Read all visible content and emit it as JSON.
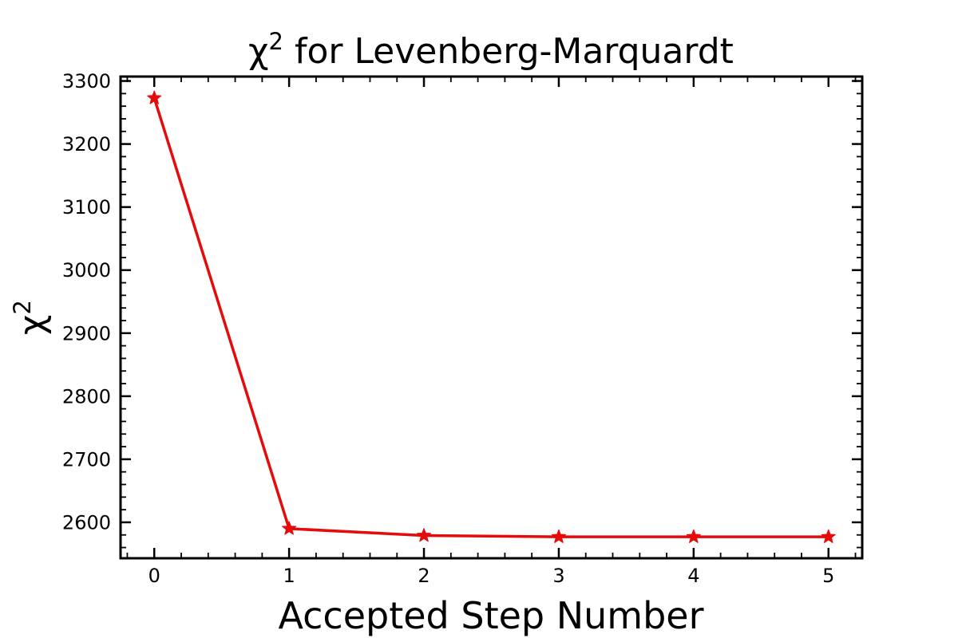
{
  "chart_data": {
    "type": "line",
    "title_base": "χ",
    "title_sup": "2",
    "title_rest": " for Levenberg-Marquardt",
    "xlabel": "Accepted Step Number",
    "ylabel_base": "χ",
    "ylabel_sup": "2",
    "x": [
      0,
      1,
      2,
      3,
      4,
      5
    ],
    "series": [
      {
        "color": "#e60b0b",
        "marker": "star",
        "values": [
          3273,
          2590,
          2579,
          2577,
          2577,
          2577
        ]
      }
    ],
    "xlim": [
      -0.25,
      5.25
    ],
    "ylim": [
      2543,
      3307
    ],
    "xticks": [
      0,
      1,
      2,
      3,
      4,
      5
    ],
    "xtick_labels": [
      "0",
      "1",
      "2",
      "3",
      "4",
      "5"
    ],
    "yticks": [
      2600,
      2700,
      2800,
      2900,
      3000,
      3100,
      3200,
      3300
    ],
    "ytick_labels": [
      "2600",
      "2700",
      "2800",
      "2900",
      "3000",
      "3100",
      "3200",
      "3300"
    ],
    "x_minor_step": 0.2,
    "y_minor_step": 20,
    "tick_direction": "in",
    "ticks_all_sides": true,
    "grid": false,
    "legend": "none"
  }
}
